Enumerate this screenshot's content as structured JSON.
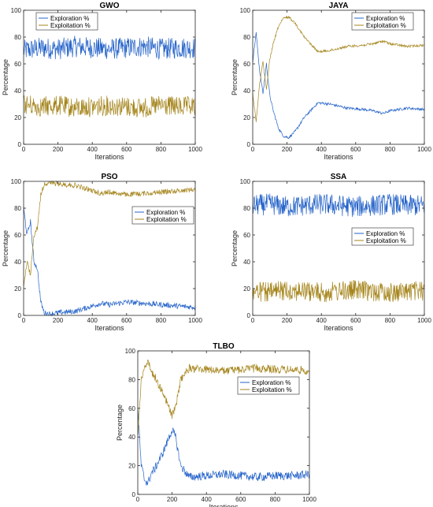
{
  "colors": {
    "exploration": "#2563c9",
    "exploitation": "#a6861e"
  },
  "chart_data": [
    {
      "type": "line",
      "title": "GWO",
      "xlabel": "Iterations",
      "ylabel": "Percentage",
      "xlim": [
        0,
        1000
      ],
      "ylim": [
        0,
        100
      ],
      "xticks": [
        "0",
        "200",
        "400",
        "600",
        "800",
        "1000"
      ],
      "yticks": [
        "0",
        "20",
        "40",
        "60",
        "80",
        "100"
      ],
      "legend": "top-center",
      "grid": false,
      "series": [
        {
          "name": "Exploration %",
          "x": [
            0,
            100,
            200,
            300,
            400,
            500,
            600,
            700,
            800,
            900,
            1000
          ],
          "y": [
            70,
            72,
            71,
            73,
            72,
            71,
            72,
            73,
            71,
            72,
            72
          ],
          "noise": 8
        },
        {
          "name": "Exploitation %",
          "x": [
            0,
            100,
            200,
            300,
            400,
            500,
            600,
            700,
            800,
            900,
            1000
          ],
          "y": [
            30,
            28,
            29,
            27,
            28,
            29,
            28,
            27,
            29,
            28,
            28
          ],
          "noise": 8
        }
      ]
    },
    {
      "type": "line",
      "title": "JAYA",
      "xlabel": "Iterations",
      "ylabel": "Percentage",
      "xlim": [
        0,
        1000
      ],
      "ylim": [
        0,
        100
      ],
      "xticks": [
        "0",
        "200",
        "400",
        "600",
        "800",
        "1000"
      ],
      "yticks": [
        "0",
        "20",
        "40",
        "60",
        "80",
        "100"
      ],
      "legend": "top-right",
      "grid": false,
      "series": [
        {
          "name": "Exploration %",
          "x": [
            0,
            20,
            40,
            60,
            80,
            100,
            120,
            150,
            180,
            210,
            250,
            300,
            380,
            450,
            550,
            650,
            700,
            760,
            800,
            900,
            1000
          ],
          "y": [
            62,
            83,
            55,
            38,
            60,
            36,
            25,
            12,
            6,
            5,
            10,
            20,
            31,
            30,
            27,
            26,
            25,
            23,
            25,
            27,
            26
          ],
          "noise": 1
        },
        {
          "name": "Exploitation %",
          "x": [
            0,
            20,
            40,
            60,
            80,
            100,
            120,
            150,
            180,
            210,
            250,
            300,
            380,
            450,
            550,
            650,
            700,
            760,
            800,
            900,
            1000
          ],
          "y": [
            38,
            17,
            45,
            62,
            40,
            64,
            75,
            88,
            94,
            95,
            90,
            80,
            69,
            70,
            73,
            74,
            75,
            77,
            75,
            73,
            74
          ],
          "noise": 1
        }
      ]
    },
    {
      "type": "line",
      "title": "PSO",
      "xlabel": "Iterations",
      "ylabel": "Percentage",
      "xlim": [
        0,
        1000
      ],
      "ylim": [
        0,
        100
      ],
      "xticks": [
        "0",
        "200",
        "400",
        "600",
        "800",
        "1000"
      ],
      "yticks": [
        "0",
        "20",
        "40",
        "60",
        "80",
        "100"
      ],
      "legend": "middle-right",
      "grid": false,
      "series": [
        {
          "name": "Exploration %",
          "x": [
            0,
            20,
            40,
            60,
            80,
            100,
            120,
            150,
            200,
            300,
            400,
            450,
            500,
            600,
            700,
            800,
            900,
            1000
          ],
          "y": [
            80,
            60,
            70,
            40,
            35,
            10,
            2,
            1,
            2,
            3,
            7,
            9,
            8,
            10,
            9,
            8,
            7,
            6
          ],
          "noise": 2
        },
        {
          "name": "Exploitation %",
          "x": [
            0,
            20,
            40,
            60,
            80,
            100,
            120,
            150,
            200,
            300,
            400,
            450,
            500,
            600,
            700,
            800,
            900,
            1000
          ],
          "y": [
            20,
            40,
            30,
            60,
            65,
            90,
            98,
            99,
            98,
            97,
            93,
            91,
            92,
            90,
            91,
            92,
            93,
            94
          ],
          "noise": 2
        }
      ]
    },
    {
      "type": "line",
      "title": "SSA",
      "xlabel": "Iterations",
      "ylabel": "Percentage",
      "xlim": [
        0,
        1000
      ],
      "ylim": [
        0,
        100
      ],
      "xticks": [
        "0",
        "200",
        "400",
        "600",
        "800",
        "1000"
      ],
      "yticks": [
        "0",
        "20",
        "40",
        "60",
        "80",
        "100"
      ],
      "legend": "middle-right",
      "grid": false,
      "series": [
        {
          "name": "Exploration %",
          "x": [
            0,
            100,
            200,
            300,
            400,
            500,
            600,
            700,
            800,
            900,
            1000
          ],
          "y": [
            82,
            83,
            81,
            82,
            83,
            82,
            81,
            82,
            83,
            82,
            82
          ],
          "noise": 8
        },
        {
          "name": "Exploitation %",
          "x": [
            0,
            100,
            200,
            300,
            400,
            500,
            600,
            700,
            800,
            900,
            1000
          ],
          "y": [
            18,
            17,
            19,
            18,
            17,
            18,
            19,
            18,
            17,
            18,
            18
          ],
          "noise": 8
        }
      ]
    },
    {
      "type": "line",
      "title": "TLBO",
      "xlabel": "Iterations",
      "ylabel": "Percentage",
      "xlim": [
        0,
        1000
      ],
      "ylim": [
        0,
        100
      ],
      "xticks": [
        "0",
        "200",
        "400",
        "600",
        "800",
        "1000"
      ],
      "yticks": [
        "0",
        "20",
        "40",
        "60",
        "80",
        "100"
      ],
      "legend": "top-right",
      "grid": false,
      "series": [
        {
          "name": "Exploration %",
          "x": [
            0,
            20,
            40,
            60,
            80,
            100,
            150,
            200,
            220,
            250,
            300,
            400,
            500,
            600,
            700,
            800,
            900,
            1000
          ],
          "y": [
            60,
            20,
            10,
            8,
            15,
            18,
            30,
            45,
            40,
            20,
            12,
            13,
            14,
            13,
            12,
            13,
            13,
            14
          ],
          "noise": 3
        },
        {
          "name": "Exploitation %",
          "x": [
            0,
            20,
            40,
            60,
            80,
            100,
            150,
            200,
            220,
            250,
            300,
            400,
            500,
            600,
            700,
            800,
            900,
            1000
          ],
          "y": [
            40,
            80,
            90,
            92,
            85,
            82,
            70,
            55,
            60,
            80,
            88,
            87,
            86,
            87,
            88,
            87,
            87,
            86
          ],
          "noise": 3
        }
      ]
    }
  ]
}
